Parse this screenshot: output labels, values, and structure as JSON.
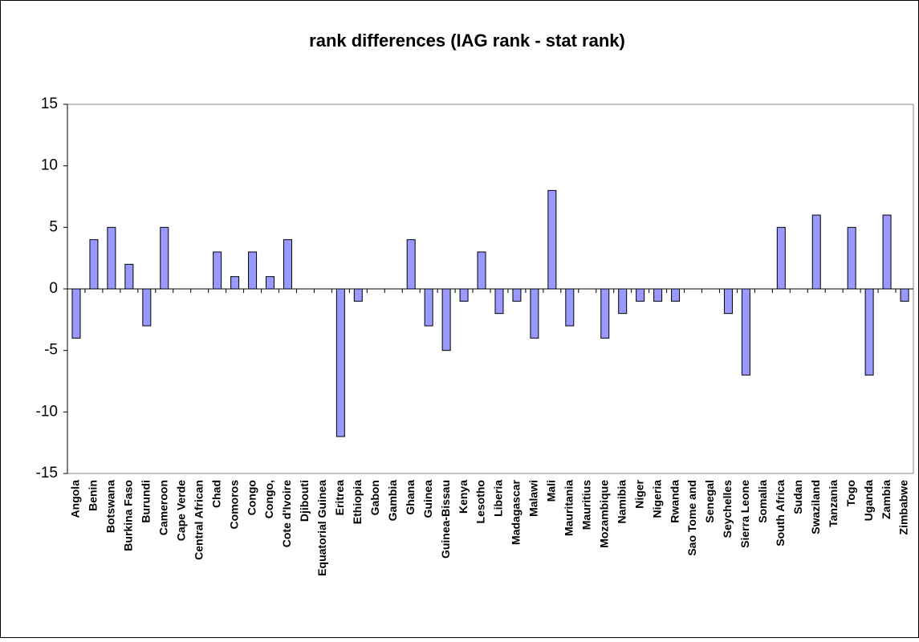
{
  "chart_data": {
    "type": "bar",
    "title": "rank differences (IAG rank - stat rank)",
    "categories": [
      "Angola",
      "Benin",
      "Botswana",
      "Burkina Faso",
      "Burundi",
      "Cameroon",
      "Cape Verde",
      "Central African",
      "Chad",
      "Comoros",
      "Congo",
      "Congo,",
      "Cote d'Ivoire",
      "Djibouti",
      "Equatorial Guinea",
      "Eritrea",
      "Ethiopia",
      "Gabon",
      "Gambia",
      "Ghana",
      "Guinea",
      "Guinea-Bissau",
      "Kenya",
      "Lesotho",
      "Liberia",
      "Madagascar",
      "Malawi",
      "Mali",
      "Mauritania",
      "Mauritius",
      "Mozambique",
      "Namibia",
      "Niger",
      "Nigeria",
      "Rwanda",
      "Sao Tome and",
      "Senegal",
      "Seychelles",
      "Sierra Leone",
      "Somalia",
      "South Africa",
      "Sudan",
      "Swaziland",
      "Tanzania",
      "Togo",
      "Uganda",
      "Zambia",
      "Zimbabwe"
    ],
    "values": [
      -4,
      4,
      5,
      2,
      -3,
      5,
      0,
      0,
      3,
      1,
      3,
      1,
      4,
      0,
      0,
      -12,
      -1,
      0,
      0,
      4,
      -3,
      -5,
      -1,
      3,
      -2,
      -1,
      -4,
      8,
      -3,
      0,
      -4,
      -2,
      -1,
      -1,
      -1,
      0,
      0,
      -2,
      -7,
      0,
      5,
      0,
      6,
      0,
      5,
      -7,
      6,
      -1
    ],
    "color": "#9999ff",
    "ylim": [
      -15,
      15
    ],
    "yticks": [
      -15,
      -10,
      -5,
      0,
      5,
      10,
      15
    ],
    "grid": false
  }
}
